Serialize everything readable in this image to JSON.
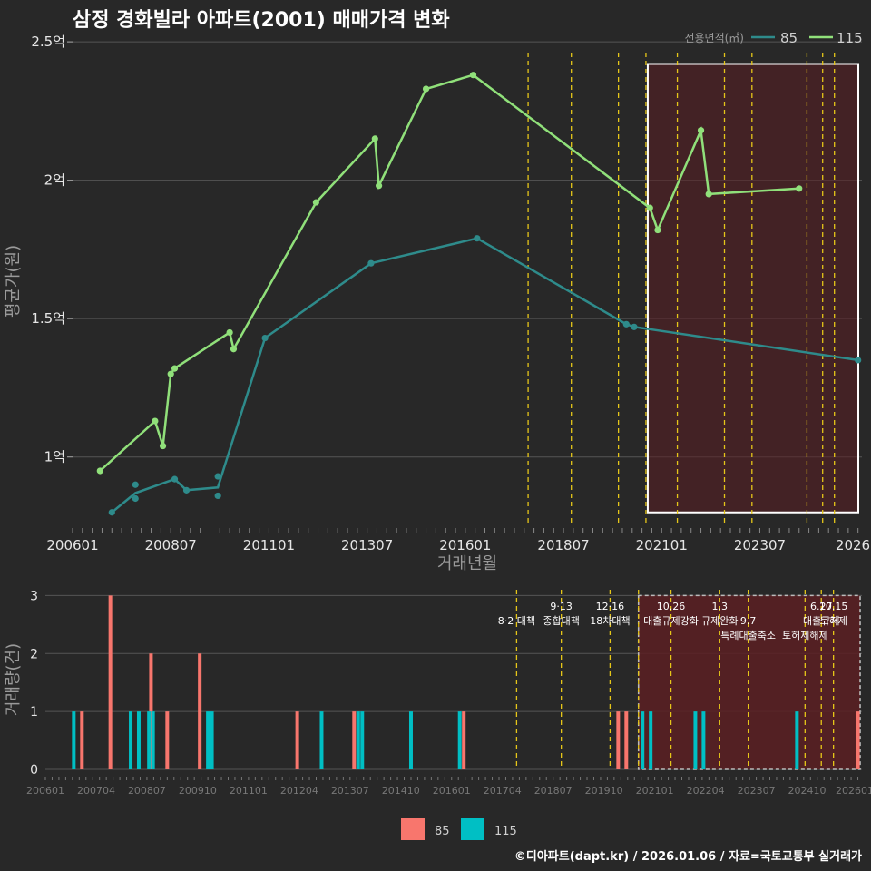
{
  "title": "삼정 경화빌라 아파트(2001) 매매가격 변화",
  "credit": "©디아파트(dapt.kr) / 2026.01.06 / 자료=국토교통부 실거래가",
  "colors": {
    "background": "#282828",
    "line_85": "#2e8b8b",
    "line_115": "#90e07a",
    "bar_85": "#f8766d",
    "bar_115": "#00bfc4",
    "policy": "#e6c619",
    "highlight_fill": "#5a1e22",
    "grid": "#555555"
  },
  "chart_data": [
    {
      "type": "line",
      "title": "",
      "xlabel": "거래년월",
      "ylabel": "평균가(원)",
      "xlim": [
        2006.0,
        2026.1
      ],
      "ylim": [
        0.75,
        2.52
      ],
      "yticks": [
        {
          "value": 1.0,
          "label": "1억"
        },
        {
          "value": 1.5,
          "label": "1.5억"
        },
        {
          "value": 2.0,
          "label": "2억"
        },
        {
          "value": 2.5,
          "label": "2.5억"
        }
      ],
      "xticks": [
        {
          "value": 2006.0,
          "label": "200601"
        },
        {
          "value": 2008.5,
          "label": "200807"
        },
        {
          "value": 2011.0,
          "label": "201101"
        },
        {
          "value": 2013.5,
          "label": "201307"
        },
        {
          "value": 2016.0,
          "label": "201601"
        },
        {
          "value": 2018.5,
          "label": "201807"
        },
        {
          "value": 2021.0,
          "label": "202101"
        },
        {
          "value": 2023.5,
          "label": "202307"
        },
        {
          "value": 2026.0,
          "label": "2026"
        }
      ],
      "legend": {
        "title": "전용면적(㎡)",
        "position": "top-right"
      },
      "series": [
        {
          "name": "85",
          "line": [
            [
              2007.0,
              0.8
            ],
            [
              2007.6,
              0.87
            ],
            [
              2008.6,
              0.92
            ],
            [
              2008.9,
              0.88
            ],
            [
              2009.7,
              0.89
            ],
            [
              2010.9,
              1.43
            ],
            [
              2013.6,
              1.7
            ],
            [
              2016.3,
              1.79
            ],
            [
              2020.1,
              1.48
            ],
            [
              2020.3,
              1.47
            ],
            [
              2026.0,
              1.35
            ]
          ],
          "points": [
            [
              2007.0,
              0.8
            ],
            [
              2007.6,
              0.9
            ],
            [
              2007.6,
              0.85
            ],
            [
              2008.6,
              0.92
            ],
            [
              2008.9,
              0.88
            ],
            [
              2009.7,
              0.93
            ],
            [
              2009.7,
              0.86
            ],
            [
              2010.9,
              1.43
            ],
            [
              2013.6,
              1.7
            ],
            [
              2016.3,
              1.79
            ],
            [
              2020.1,
              1.48
            ],
            [
              2020.3,
              1.47
            ],
            [
              2026.0,
              1.35
            ]
          ]
        },
        {
          "name": "115",
          "line": [
            [
              2006.7,
              0.95
            ],
            [
              2008.1,
              1.13
            ],
            [
              2008.3,
              1.04
            ],
            [
              2008.5,
              1.3
            ],
            [
              2008.6,
              1.32
            ],
            [
              2010.0,
              1.45
            ],
            [
              2010.1,
              1.39
            ],
            [
              2012.2,
              1.92
            ],
            [
              2013.7,
              2.15
            ],
            [
              2013.8,
              1.98
            ],
            [
              2015.0,
              2.33
            ],
            [
              2016.2,
              2.38
            ],
            [
              2020.7,
              1.9
            ],
            [
              2020.9,
              1.82
            ],
            [
              2022.0,
              2.18
            ],
            [
              2022.2,
              1.95
            ],
            [
              2024.5,
              1.97
            ]
          ],
          "points": [
            [
              2006.7,
              0.95
            ],
            [
              2008.1,
              1.13
            ],
            [
              2008.3,
              1.04
            ],
            [
              2008.5,
              1.3
            ],
            [
              2008.6,
              1.32
            ],
            [
              2010.0,
              1.45
            ],
            [
              2010.1,
              1.39
            ],
            [
              2012.2,
              1.92
            ],
            [
              2013.7,
              2.15
            ],
            [
              2013.8,
              1.98
            ],
            [
              2015.0,
              2.33
            ],
            [
              2016.2,
              2.38
            ],
            [
              2020.7,
              1.9
            ],
            [
              2020.9,
              1.82
            ],
            [
              2022.0,
              2.18
            ],
            [
              2022.2,
              1.95
            ],
            [
              2024.5,
              1.97
            ]
          ]
        }
      ],
      "policy_lines": [
        2017.6,
        2018.7,
        2019.9,
        2020.6,
        2021.4,
        2022.6,
        2023.3,
        2024.7,
        2025.1,
        2025.4
      ],
      "highlight_range": [
        2020.6,
        2026.1
      ]
    },
    {
      "type": "bar",
      "title": "",
      "xlabel": "",
      "ylabel": "거래량(건)",
      "xlim": [
        2006.0,
        2026.1
      ],
      "ylim": [
        0,
        3.1
      ],
      "yticks": [
        0,
        1,
        2,
        3
      ],
      "xticks": [
        {
          "value": 2006.0,
          "label": "200601"
        },
        {
          "value": 2007.25,
          "label": "200704"
        },
        {
          "value": 2008.5,
          "label": "200807"
        },
        {
          "value": 2009.75,
          "label": "200910"
        },
        {
          "value": 2011.0,
          "label": "201101"
        },
        {
          "value": 2012.25,
          "label": "201204"
        },
        {
          "value": 2013.5,
          "label": "201307"
        },
        {
          "value": 2014.75,
          "label": "201410"
        },
        {
          "value": 2016.0,
          "label": "201601"
        },
        {
          "value": 2017.25,
          "label": "201704"
        },
        {
          "value": 2018.5,
          "label": "201807"
        },
        {
          "value": 2019.75,
          "label": "201910"
        },
        {
          "value": 2021.0,
          "label": "202101"
        },
        {
          "value": 2022.25,
          "label": "202204"
        },
        {
          "value": 2023.5,
          "label": "202307"
        },
        {
          "value": 2024.75,
          "label": "202410"
        },
        {
          "value": 2026.0,
          "label": "202601"
        }
      ],
      "series": [
        {
          "name": "85",
          "bars": [
            [
              2006.9,
              1
            ],
            [
              2007.6,
              3
            ],
            [
              2008.6,
              2
            ],
            [
              2009.0,
              1
            ],
            [
              2009.8,
              2
            ],
            [
              2012.2,
              1
            ],
            [
              2013.6,
              1
            ],
            [
              2016.3,
              1
            ],
            [
              2020.1,
              1
            ],
            [
              2020.3,
              1
            ],
            [
              2026.0,
              1
            ]
          ]
        },
        {
          "name": "115",
          "bars": [
            [
              2006.7,
              1
            ],
            [
              2008.1,
              1
            ],
            [
              2008.3,
              1
            ],
            [
              2008.55,
              1
            ],
            [
              2008.65,
              1
            ],
            [
              2010.0,
              1
            ],
            [
              2010.1,
              1
            ],
            [
              2012.8,
              1
            ],
            [
              2013.7,
              1
            ],
            [
              2013.8,
              1
            ],
            [
              2015.0,
              1
            ],
            [
              2016.2,
              1
            ],
            [
              2020.7,
              1
            ],
            [
              2020.9,
              1
            ],
            [
              2022.0,
              1
            ],
            [
              2022.2,
              1
            ],
            [
              2024.5,
              1
            ]
          ]
        }
      ],
      "policy_lines": [
        2017.6,
        2018.7,
        2019.9,
        2020.6,
        2021.4,
        2022.6,
        2023.3,
        2024.7,
        2025.1,
        2025.4
      ],
      "highlight_range": [
        2020.6,
        2026.1
      ],
      "annotations": [
        {
          "x": 2017.6,
          "row": 1,
          "text": "8·2 대책"
        },
        {
          "x": 2018.7,
          "row": 0,
          "text": "9·13"
        },
        {
          "x": 2018.7,
          "row": 1,
          "text": "종합대책"
        },
        {
          "x": 2019.9,
          "row": 0,
          "text": "12·16"
        },
        {
          "x": 2019.9,
          "row": 1,
          "text": "18차대책"
        },
        {
          "x": 2021.4,
          "row": 0,
          "text": "10.26"
        },
        {
          "x": 2021.4,
          "row": 1,
          "text": "대출규제강화"
        },
        {
          "x": 2022.6,
          "row": 0,
          "text": "1.3"
        },
        {
          "x": 2022.6,
          "row": 1,
          "text": "규제완화"
        },
        {
          "x": 2023.3,
          "row": 1,
          "text": "9.7"
        },
        {
          "x": 2023.3,
          "row": 2,
          "text": "특례대출축소"
        },
        {
          "x": 2024.7,
          "row": 2,
          "text": "토허제해제"
        },
        {
          "x": 2025.1,
          "row": 0,
          "text": "6.27"
        },
        {
          "x": 2025.1,
          "row": 1,
          "text": "대출규제"
        },
        {
          "x": 2025.4,
          "row": 0,
          "text": "10.15"
        },
        {
          "x": 2025.4,
          "row": 1,
          "text": "토허제"
        }
      ]
    }
  ],
  "bottom_legend": [
    {
      "label": "85"
    },
    {
      "label": "115"
    }
  ]
}
